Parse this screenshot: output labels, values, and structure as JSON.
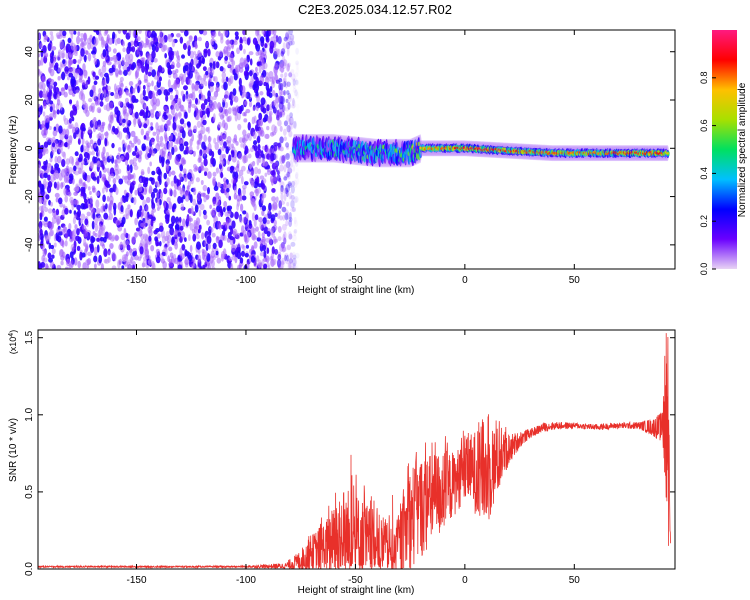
{
  "title": "C2E3.2025.034.12.57.R02",
  "chart_data": [
    {
      "type": "heatmap",
      "xlabel": "Height of straight line (km)",
      "ylabel": "Frequency (Hz)",
      "xlim": [
        -195,
        96
      ],
      "ylim": [
        -50,
        49
      ],
      "xticks": [
        -150,
        -100,
        -50,
        0,
        50
      ],
      "xtick_labels": [
        "-150",
        "-100",
        "-50",
        "0",
        "50"
      ],
      "yticks": [
        -40,
        -20,
        0,
        20,
        40
      ],
      "ytick_labels": [
        "-40",
        "-20",
        "0",
        "20",
        "40"
      ],
      "colorbar": {
        "label": "Normalized spectral amplitude",
        "range": [
          0,
          1
        ],
        "ticks": [
          0.0,
          0.2,
          0.4,
          0.6,
          0.8
        ],
        "tick_labels": [
          "0.0",
          "0.2",
          "0.4",
          "0.6",
          "0.8"
        ],
        "colormap": "rainbow",
        "stops": [
          "#e8d4f4",
          "#6a00ff",
          "#0000ff",
          "#00c0ff",
          "#00e060",
          "#a8e000",
          "#ffc000",
          "#ff0000",
          "#ff1a80"
        ]
      },
      "regions": {
        "noise": {
          "x_range": [
            -195,
            -78
          ],
          "freq_range": [
            -50,
            49
          ],
          "amplitude": [
            0.05,
            0.2
          ]
        },
        "signal_band": {
          "x": [
            -78,
            -60,
            -40,
            -25,
            -20,
            0,
            20,
            40,
            60,
            80,
            90,
            93
          ],
          "center_freq": [
            0,
            0,
            -2,
            -2,
            0,
            0,
            -1,
            -2,
            -2,
            -2,
            -2,
            -2
          ],
          "peak_amplitude": [
            0.45,
            0.5,
            0.55,
            0.6,
            0.8,
            0.95,
            0.9,
            0.85,
            0.85,
            0.9,
            0.9,
            0.7
          ]
        }
      },
      "grid": false,
      "legend": "colorbar-right"
    },
    {
      "type": "line",
      "xlabel": "Height of straight line (km)",
      "ylabel": "SNR (10 * v/v)",
      "multiplier_label": "(x10",
      "multiplier_exp": "4",
      "xlim": [
        -195,
        96
      ],
      "ylim": [
        0,
        1.55
      ],
      "xticks": [
        -150,
        -100,
        -50,
        0,
        50
      ],
      "xtick_labels": [
        "-150",
        "-100",
        "-50",
        "0",
        "50"
      ],
      "yticks": [
        0,
        0.5,
        1.0,
        1.5
      ],
      "ytick_labels": [
        "0.0",
        "0.5",
        "1.0",
        "1.5"
      ],
      "color": "#e8302a",
      "envelope": {
        "x": [
          -195,
          -100,
          -82,
          -76,
          -70,
          -62,
          -55,
          -48,
          -42,
          -36,
          -32,
          -28,
          -25,
          -22,
          -18,
          -14,
          -10,
          -6,
          -2,
          2,
          6,
          10,
          14,
          18,
          22,
          26,
          30,
          36,
          42,
          50,
          60,
          70,
          80,
          86,
          90,
          92,
          93,
          94
        ],
        "base": [
          0.015,
          0.015,
          0.02,
          0.05,
          0.1,
          0.15,
          0.2,
          0.18,
          0.14,
          0.12,
          0.1,
          0.22,
          0.32,
          0.38,
          0.42,
          0.46,
          0.5,
          0.54,
          0.6,
          0.65,
          0.62,
          0.6,
          0.68,
          0.75,
          0.8,
          0.85,
          0.88,
          0.92,
          0.93,
          0.93,
          0.92,
          0.93,
          0.93,
          0.92,
          0.92,
          0.95,
          0.9,
          0.05
        ],
        "spread": [
          0.005,
          0.005,
          0.02,
          0.06,
          0.12,
          0.2,
          0.35,
          0.3,
          0.25,
          0.2,
          0.12,
          0.25,
          0.35,
          0.35,
          0.32,
          0.3,
          0.28,
          0.22,
          0.2,
          0.22,
          0.3,
          0.35,
          0.25,
          0.15,
          0.08,
          0.05,
          0.03,
          0.03,
          0.025,
          0.02,
          0.02,
          0.02,
          0.025,
          0.06,
          0.1,
          0.55,
          0.4,
          0.1
        ]
      },
      "peaks": [
        {
          "x": -52,
          "y": 0.74
        },
        {
          "x": -33,
          "y": 0.48
        },
        {
          "x": -15,
          "y": 0.82
        },
        {
          "x": 8,
          "y": 0.97
        },
        {
          "x": 92,
          "y": 1.53
        },
        {
          "x": 93,
          "y": 0.15
        }
      ],
      "grid": false,
      "legend": "none"
    }
  ]
}
